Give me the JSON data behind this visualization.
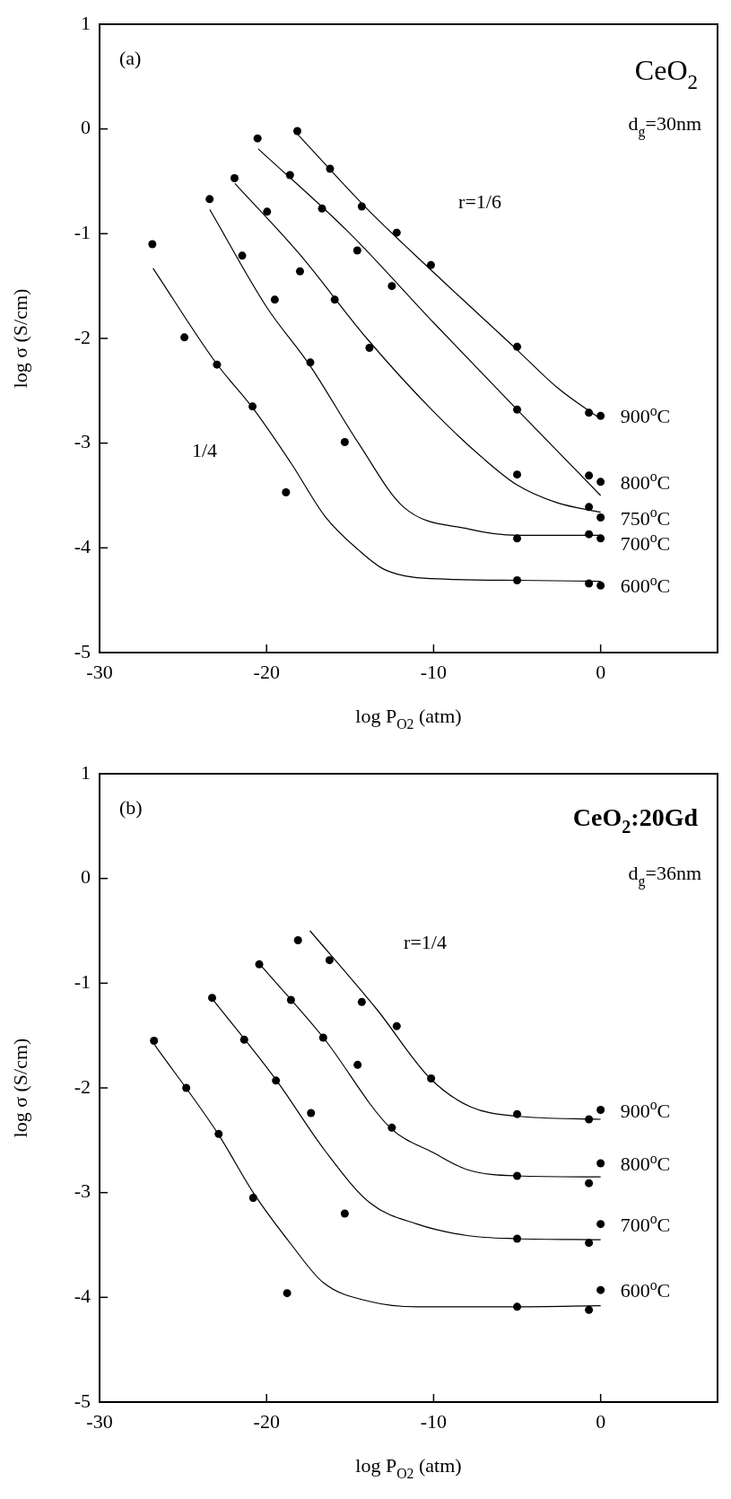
{
  "chart_data": [
    {
      "type": "scatter",
      "title": "CeO$_{2}$",
      "xlabel": "log P$_{O2}$ (atm)",
      "ylabel": "log σ (S/cm)",
      "xlim": [
        -30,
        7
      ],
      "xticks": [
        -30,
        -20,
        -10,
        0
      ],
      "ylim": [
        -5,
        1
      ],
      "yticks": [
        -5,
        -4,
        -3,
        -2,
        -1,
        0,
        1
      ],
      "annotations": [
        "(a)",
        "d$_{g}$=30nm",
        "r=1/6",
        "1/4"
      ],
      "series": [
        {
          "type": "scatter",
          "marker": "circle",
          "name": "900$^{o}$C",
          "color": "#000000",
          "x": [
            -18.16,
            -16.2,
            -14.3,
            -12.21,
            -10.16,
            -5,
            -0.7,
            0
          ],
          "values": [
            -0.02,
            -0.38,
            -0.74,
            -0.99,
            -1.3,
            -2.08,
            -2.71,
            -2.74
          ]
        },
        {
          "type": "scatter",
          "marker": "circle",
          "name": "800$^{o}$C",
          "color": "#000000",
          "x": [
            -20.54,
            -18.6,
            -16.68,
            -14.57,
            -12.5,
            -5,
            -0.7,
            0
          ],
          "values": [
            -0.09,
            -0.44,
            -0.76,
            -1.16,
            -1.5,
            -2.68,
            -3.31,
            -3.37
          ]
        },
        {
          "type": "scatter",
          "marker": "circle",
          "name": "750$^{o}$C",
          "color": "#000000",
          "x": [
            -21.92,
            -19.97,
            -18.0,
            -15.92,
            -13.84,
            -5,
            -0.7,
            0
          ],
          "values": [
            -0.47,
            -0.79,
            -1.36,
            -1.63,
            -2.09,
            -3.3,
            -3.61,
            -3.71
          ]
        },
        {
          "type": "scatter",
          "marker": "circle",
          "name": "700$^{o}$C",
          "color": "#000000",
          "x": [
            -23.41,
            -21.46,
            -19.51,
            -17.38,
            -15.32,
            -5,
            -0.7,
            0
          ],
          "values": [
            -0.67,
            -1.21,
            -1.63,
            -2.23,
            -2.99,
            -3.91,
            -3.87,
            -3.91
          ]
        },
        {
          "type": "scatter",
          "marker": "circle",
          "name": "600$^{o}$C",
          "color": "#000000",
          "x": [
            -26.84,
            -24.92,
            -22.97,
            -20.84,
            -18.84,
            -5,
            -0.7,
            0
          ],
          "values": [
            -1.1,
            -1.99,
            -2.25,
            -2.65,
            -3.47,
            -4.31,
            -4.34,
            -4.36
          ]
        },
        {
          "type": "line",
          "marker": "none",
          "color": "#000000",
          "x": [
            -18.2,
            -14,
            -10,
            -5,
            -2.6,
            0
          ],
          "values": [
            -0.04,
            -0.76,
            -1.37,
            -2.11,
            -2.47,
            -2.77
          ]
        },
        {
          "type": "line",
          "marker": "none",
          "color": "#000000",
          "x": [
            -20.5,
            -15,
            -10,
            -5,
            0
          ],
          "values": [
            -0.19,
            -1.0,
            -1.85,
            -2.68,
            -3.5
          ]
        },
        {
          "type": "line",
          "marker": "none",
          "color": "#000000",
          "x": [
            -21.9,
            -18,
            -14,
            -10,
            -7,
            -5,
            -2.6,
            0
          ],
          "values": [
            -0.52,
            -1.2,
            -2.0,
            -2.7,
            -3.15,
            -3.4,
            -3.57,
            -3.66
          ]
        },
        {
          "type": "line",
          "marker": "none",
          "color": "#000000",
          "x": [
            -23.4,
            -20,
            -17.4,
            -14.5,
            -11.8,
            -7.9,
            -5,
            0
          ],
          "values": [
            -0.77,
            -1.7,
            -2.26,
            -3.0,
            -3.61,
            -3.82,
            -3.88,
            -3.88
          ]
        },
        {
          "type": "line",
          "marker": "none",
          "color": "#000000",
          "x": [
            -26.8,
            -23,
            -20.8,
            -18.5,
            -16.5,
            -14.5,
            -12.9,
            -9.1,
            -5,
            0
          ],
          "values": [
            -1.33,
            -2.24,
            -2.67,
            -3.2,
            -3.7,
            -4.02,
            -4.21,
            -4.3,
            -4.31,
            -4.32
          ]
        }
      ]
    },
    {
      "type": "scatter",
      "title": "CeO$_{2}$:20Gd",
      "xlabel": "log P$_{O2}$ (atm)",
      "ylabel": "log σ (S/cm)",
      "xlim": [
        -30,
        7
      ],
      "xticks": [
        -30,
        -20,
        -10,
        0
      ],
      "ylim": [
        -5,
        1
      ],
      "yticks": [
        -5,
        -4,
        -3,
        -2,
        -1,
        0,
        1
      ],
      "annotations": [
        "(b)",
        "d$_{g}$=36nm",
        "r=1/4"
      ],
      "series": [
        {
          "type": "scatter",
          "marker": "circle",
          "name": "900$^{o}$C",
          "color": "#000000",
          "x": [
            -18.12,
            -16.23,
            -14.3,
            -12.21,
            -10.15,
            -5,
            -0.7,
            0
          ],
          "values": [
            -0.59,
            -0.78,
            -1.18,
            -1.41,
            -1.91,
            -2.25,
            -2.3,
            -2.21
          ]
        },
        {
          "type": "scatter",
          "marker": "circle",
          "name": "800$^{o}$C",
          "color": "#000000",
          "x": [
            -20.44,
            -18.54,
            -16.61,
            -14.55,
            -12.5,
            -5,
            -0.7,
            0
          ],
          "values": [
            -0.82,
            -1.16,
            -1.52,
            -1.78,
            -2.38,
            -2.84,
            -2.91,
            -2.72
          ]
        },
        {
          "type": "scatter",
          "marker": "circle",
          "name": "700$^{o}$C",
          "color": "#000000",
          "x": [
            -23.26,
            -21.34,
            -19.44,
            -17.34,
            -15.32,
            -5,
            -0.7,
            0
          ],
          "values": [
            -1.14,
            -1.54,
            -1.93,
            -2.24,
            -3.2,
            -3.44,
            -3.48,
            -3.3
          ]
        },
        {
          "type": "scatter",
          "marker": "circle",
          "name": "600$^{o}$C",
          "color": "#000000",
          "x": [
            -26.74,
            -24.81,
            -22.87,
            -20.8,
            -18.77,
            -5,
            -0.7,
            0
          ],
          "values": [
            -1.55,
            -2.0,
            -2.44,
            -3.05,
            -3.96,
            -4.09,
            -4.12,
            -3.93
          ]
        },
        {
          "type": "line",
          "marker": "none",
          "color": "#000000",
          "x": [
            -17.4,
            -13.4,
            -10.2,
            -7.8,
            -5,
            0
          ],
          "values": [
            -0.5,
            -1.25,
            -1.91,
            -2.18,
            -2.27,
            -2.3
          ]
        },
        {
          "type": "line",
          "marker": "none",
          "color": "#000000",
          "x": [
            -20.4,
            -16.6,
            -12.6,
            -10,
            -8,
            -5,
            0
          ],
          "values": [
            -0.82,
            -1.52,
            -2.38,
            -2.62,
            -2.78,
            -2.84,
            -2.85
          ]
        },
        {
          "type": "line",
          "marker": "none",
          "color": "#000000",
          "x": [
            -23.3,
            -19.4,
            -16.5,
            -13.8,
            -11,
            -8,
            -5,
            0
          ],
          "values": [
            -1.14,
            -1.93,
            -2.6,
            -3.1,
            -3.3,
            -3.41,
            -3.44,
            -3.45
          ]
        },
        {
          "type": "line",
          "marker": "none",
          "color": "#000000",
          "x": [
            -26.7,
            -22.9,
            -20.8,
            -18.5,
            -16.6,
            -13.8,
            -11,
            -5,
            0
          ],
          "values": [
            -1.59,
            -2.44,
            -3.0,
            -3.5,
            -3.86,
            -4.04,
            -4.09,
            -4.09,
            -4.08
          ]
        }
      ]
    }
  ]
}
